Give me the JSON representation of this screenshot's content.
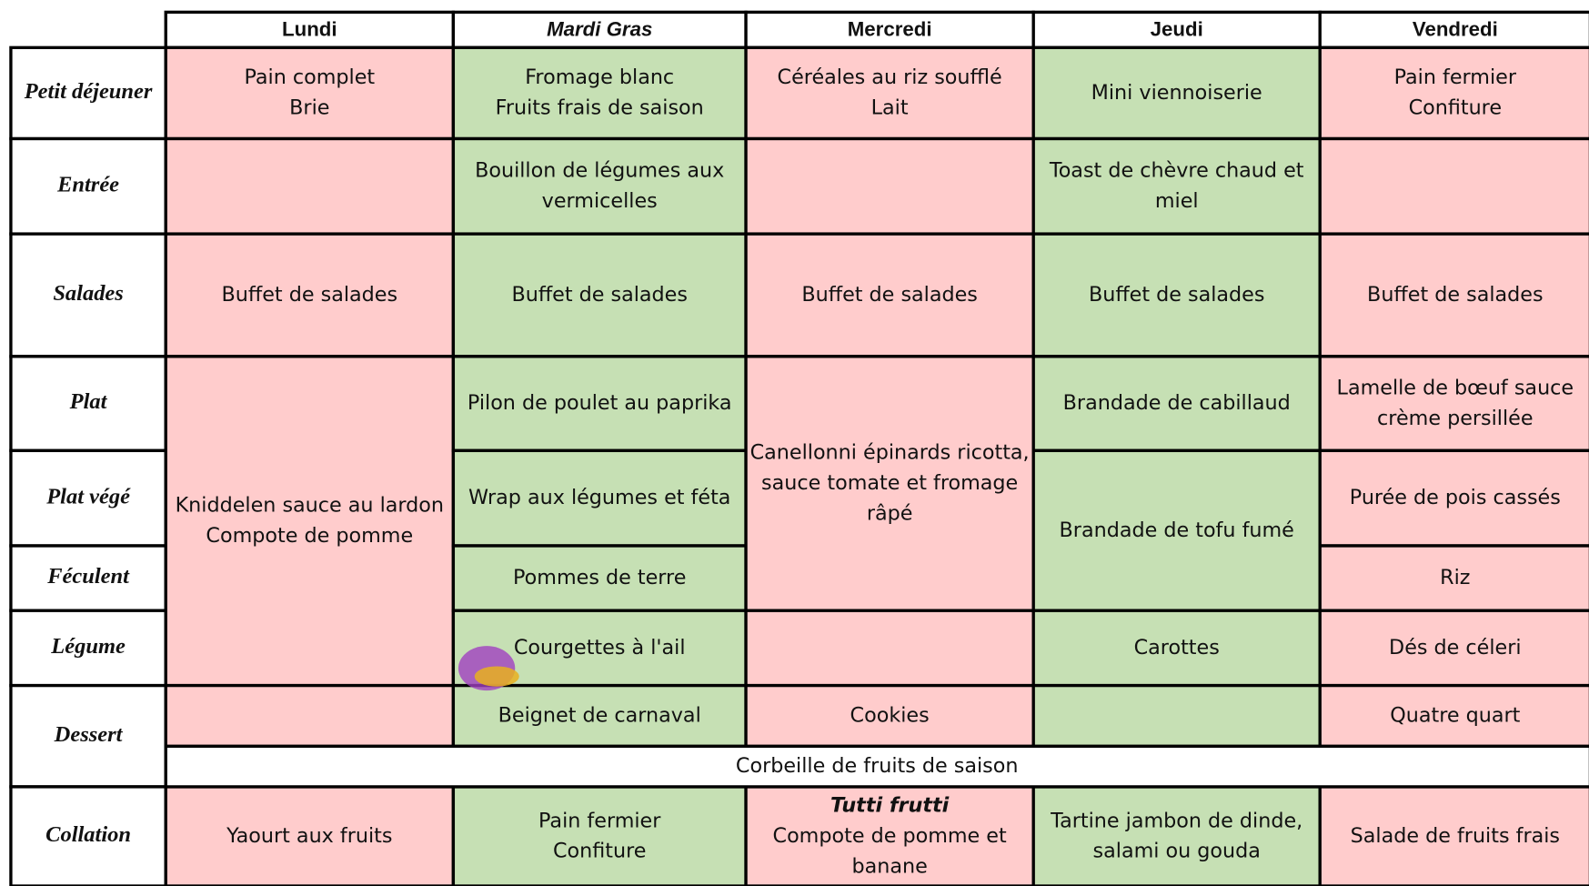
{
  "header": {
    "days": [
      "Lundi",
      "Mardi Gras",
      "Mercredi",
      "Jeudi",
      "Vendredi"
    ]
  },
  "rows": [
    "Petit déjeuner",
    "Entrée",
    "Salades",
    "Plat",
    "Plat végé",
    "Féculent",
    "Légume",
    "Dessert",
    "Collation"
  ],
  "fruit_row": "Corbeille de fruits de saison",
  "cells": [
    {
      "lines": [
        "Pain complet",
        "Brie"
      ]
    },
    {
      "lines": []
    },
    {
      "lines": [
        "Buffet de salades"
      ]
    },
    {
      "lines": [
        "Kniddelen sauce au lardon",
        "Compote de pomme"
      ]
    },
    {
      "lines": []
    },
    {
      "lines": [
        "Yaourt aux fruits"
      ]
    },
    {
      "lines": [
        "Fromage blanc",
        "Fruits frais de saison"
      ]
    },
    {
      "lines": [
        "Bouillon de légumes aux",
        "vermicelles"
      ]
    },
    {
      "lines": [
        "Buffet de salades"
      ]
    },
    {
      "lines": [
        "Pilon de poulet au paprika"
      ]
    },
    {
      "lines": [
        "Wrap aux légumes et féta"
      ]
    },
    {
      "lines": [
        "Pommes de terre"
      ]
    },
    {
      "lines": [
        "Courgettes à l'ail"
      ]
    },
    {
      "lines": [
        "Beignet de carnaval"
      ]
    },
    {
      "lines": [
        "Pain fermier",
        "Confiture"
      ]
    },
    {
      "lines": [
        "Céréales au riz soufflé",
        "Lait"
      ]
    },
    {
      "lines": []
    },
    {
      "lines": [
        "Buffet de salades"
      ]
    },
    {
      "lines": [
        "Canellonni épinards ricotta,",
        "sauce tomate et fromage",
        "râpé"
      ]
    },
    {
      "lines": []
    },
    {
      "lines": [
        "Cookies"
      ]
    },
    {
      "tag": "Tutti frutti",
      "lines": [
        "Compote de pomme et",
        "banane"
      ]
    },
    {
      "lines": [
        "Mini viennoiserie"
      ]
    },
    {
      "lines": [
        "Toast de chèvre chaud et",
        "miel"
      ]
    },
    {
      "lines": [
        "Buffet de salades"
      ]
    },
    {
      "lines": [
        "Brandade de cabillaud"
      ]
    },
    {
      "lines": [
        "Brandade de tofu fumé"
      ]
    },
    {
      "lines": [
        "Carottes"
      ]
    },
    {
      "lines": []
    },
    {
      "lines": [
        "Tartine jambon de dinde,",
        "salami ou gouda"
      ]
    },
    {
      "lines": [
        "Pain fermier",
        "Confiture"
      ]
    },
    {
      "lines": []
    },
    {
      "lines": [
        "Buffet de salades"
      ]
    },
    {
      "lines": [
        "Lamelle de bœuf sauce",
        "crème persillée"
      ]
    },
    {
      "lines": [
        "Purée de pois cassés"
      ]
    },
    {
      "lines": [
        "Riz"
      ]
    },
    {
      "lines": [
        "Dés de céleri"
      ]
    },
    {
      "lines": [
        "Quatre quart"
      ]
    },
    {
      "lines": [
        "Salade de fruits frais"
      ]
    }
  ]
}
